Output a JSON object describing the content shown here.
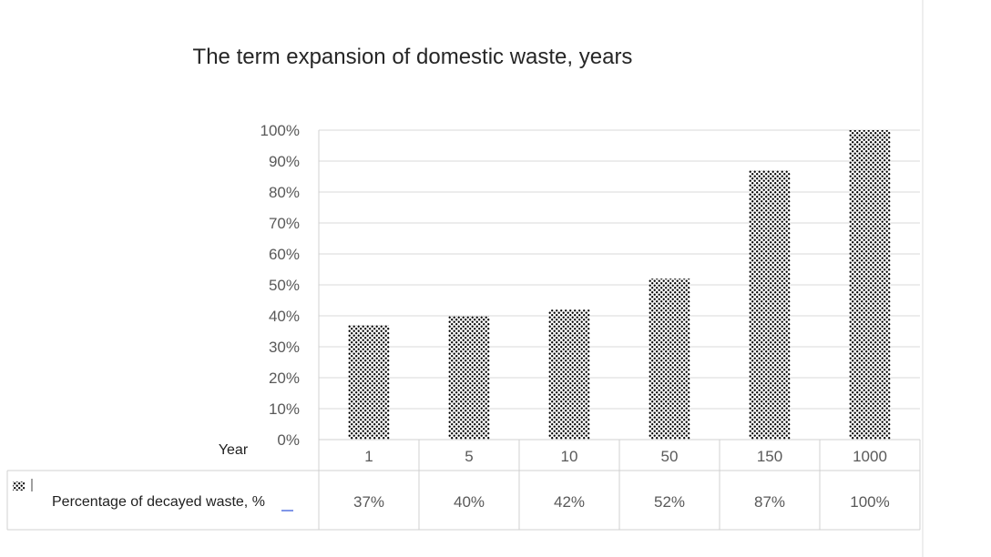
{
  "chart_data": {
    "type": "bar",
    "title": "The term expansion of domestic waste, years",
    "x_header": "Year",
    "categories": [
      "1",
      "5",
      "10",
      "50",
      "150",
      "1000"
    ],
    "series": [
      {
        "name": "Percentage of decayed waste, %",
        "values": [
          37,
          40,
          42,
          52,
          87,
          100
        ],
        "labels": [
          "37%",
          "40%",
          "42%",
          "52%",
          "87%",
          "100%"
        ]
      }
    ],
    "ylim": [
      0,
      100
    ],
    "yticks": [
      "0%",
      "10%",
      "20%",
      "30%",
      "40%",
      "50%",
      "60%",
      "70%",
      "80%",
      "90%",
      "100%"
    ],
    "grid": true,
    "data_table": true,
    "legend_marker": "dotted-pattern",
    "colors": {
      "bar_fill": "#ffffff",
      "dots": "#000000",
      "grid": "#d9d9d9"
    }
  }
}
